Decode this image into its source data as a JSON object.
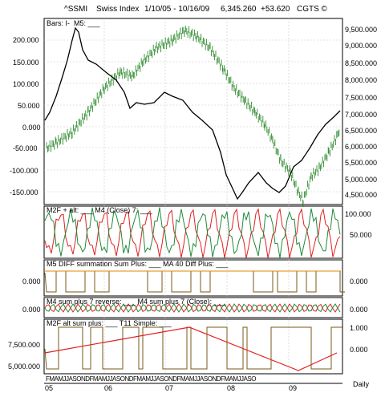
{
  "header": {
    "symbol": "^SSMI",
    "name": "Swiss Index",
    "range": "1/10/05 - 10/16/09",
    "last": "6,345.260",
    "change": "+53.620",
    "source": "CGTS ©"
  },
  "panel1": {
    "bars_label": "Bars: I-",
    "m5_label": "M5: ___",
    "left_ticks": [
      "200.000",
      "150.000",
      "100.000",
      "50.000",
      "0.000",
      "-50.000",
      "-100.000",
      "-150.000"
    ],
    "right_ticks": [
      "9,500.000",
      "9,000.000",
      "8,500.000",
      "8,000.000",
      "7,500.000",
      "7,000.000",
      "6,500.000",
      "6,000.000",
      "5,500.000",
      "5,000.000",
      "4,500.000"
    ]
  },
  "panel2": {
    "title": "M2F + alt: ___   M4 (Close) 7: ___",
    "right_ticks": [
      "100.000",
      "50.000"
    ]
  },
  "panel3": {
    "title": "M5 DIFF summation Sum Plus: ___   MA 40 Diff Plus: ___",
    "left_ticks": [
      "0.000"
    ],
    "right_ticks": [
      "0.000"
    ]
  },
  "panel4": {
    "title": "M4 sum plus 7 reverse: ___   M4 sum plus 7 (Close): ___",
    "left_ticks": [
      "0.000"
    ],
    "right_ticks": [
      "0.000"
    ]
  },
  "panel5": {
    "title": "M2F alt sum plus: ___   T11 Simple: ___",
    "left_ticks": [
      "7,500.000",
      "5,000.000"
    ],
    "right_ticks": [
      "1.000",
      "0.000"
    ]
  },
  "bottom": {
    "months": "FMAMJJASONDFMAMJJASONDFMAMJJASONDFMAMJJASONDFMAMJJASO",
    "years": [
      "05",
      "06",
      "07",
      "08",
      "09"
    ],
    "daily": "Daily"
  },
  "colors": {
    "price_bars": "#2e8b2e",
    "m5_line": "#000000",
    "red_line": "#e02020",
    "green_line": "#1f8a3a",
    "orange_line": "#e08a00",
    "brown_line": "#7a5a1a"
  }
}
